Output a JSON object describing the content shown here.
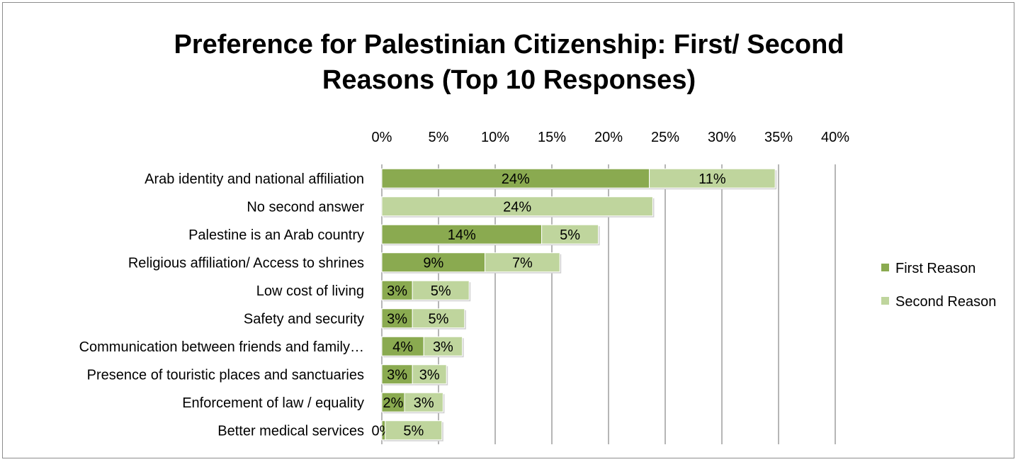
{
  "chart_data": {
    "type": "bar",
    "orientation": "horizontal",
    "stacked": true,
    "title_lines": [
      "Preference for Palestinian Citizenship: First/ Second",
      "Reasons (Top 10 Responses)"
    ],
    "categories": [
      "Arab identity and national affiliation",
      "No second answer",
      "Palestine is an Arab country",
      "Religious affiliation/ Access to shrines",
      "Low cost of living",
      "Safety and security",
      "Communication between friends and family…",
      "Presence of touristic places and sanctuaries",
      "Enforcement of law / equality",
      "Better medical services"
    ],
    "series": [
      {
        "name": "First Reason",
        "color": "#8aaa50",
        "values": [
          23.6,
          0,
          14.1,
          9.1,
          2.7,
          2.7,
          3.7,
          2.7,
          2.0,
          0.3
        ],
        "labels": [
          "24%",
          "",
          "14%",
          "9%",
          "3%",
          "3%",
          "4%",
          "3%",
          "2%",
          "0%"
        ]
      },
      {
        "name": "Second Reason",
        "color": "#bfd59d",
        "values": [
          11.1,
          23.9,
          5.0,
          6.6,
          5.0,
          4.6,
          3.4,
          3.0,
          3.4,
          5.0
        ],
        "labels": [
          "11%",
          "24%",
          "5%",
          "7%",
          "5%",
          "5%",
          "3%",
          "3%",
          "3%",
          "5%"
        ]
      }
    ],
    "xlim": [
      0,
      40
    ],
    "xticks": [
      "0%",
      "5%",
      "10%",
      "15%",
      "20%",
      "25%",
      "30%",
      "35%",
      "40%"
    ],
    "axis_position": "top",
    "grid": true,
    "legend_position": "right"
  }
}
